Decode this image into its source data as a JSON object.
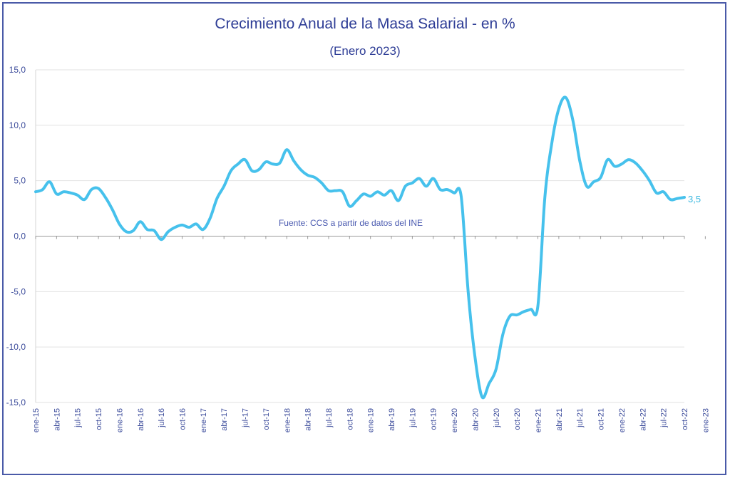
{
  "chart_data": {
    "type": "line",
    "title": "Crecimiento Anual de la Masa Salarial - en %",
    "subtitle": "(Enero 2023)",
    "source_note": "Fuente: CCS a partir de datos del INE",
    "end_label": "3,5",
    "xlabel": "",
    "ylabel": "",
    "ylim": [
      -15,
      15
    ],
    "yticks": [
      15,
      10,
      5,
      0,
      -5,
      -10,
      -15
    ],
    "ytick_labels": [
      "15,0",
      "10,0",
      "5,0",
      "0,0",
      "-5,0",
      "-10,0",
      "-15,0"
    ],
    "grid": true,
    "line_color": "#46c1ec",
    "x_tick_labels": [
      "ene-15",
      "abr-15",
      "jul-15",
      "oct-15",
      "ene-16",
      "abr-16",
      "jul-16",
      "oct-16",
      "ene-17",
      "abr-17",
      "jul-17",
      "oct-17",
      "ene-18",
      "abr-18",
      "jul-18",
      "oct-18",
      "ene-19",
      "abr-19",
      "jul-19",
      "oct-19",
      "ene-20",
      "abr-20",
      "jul-20",
      "oct-20",
      "ene-21",
      "abr-21",
      "jul-21",
      "oct-21",
      "ene-22",
      "abr-22",
      "jul-22",
      "oct-22",
      "ene-23"
    ],
    "series": [
      {
        "values": [
          4.0,
          4.2,
          4.9,
          3.8,
          4.0,
          3.9,
          3.7,
          3.3,
          4.2,
          4.3,
          3.5,
          2.4,
          1.1,
          0.4,
          0.5,
          1.3,
          0.6,
          0.5,
          -0.3,
          0.4,
          0.8,
          1.0,
          0.8,
          1.1,
          0.6,
          1.6,
          3.4,
          4.5,
          5.9,
          6.5,
          6.9,
          5.9,
          6.0,
          6.7,
          6.5,
          6.6,
          7.8,
          6.8,
          6.0,
          5.5,
          5.3,
          4.8,
          4.1,
          4.1,
          4.0,
          2.7,
          3.2,
          3.8,
          3.6,
          4.0,
          3.7,
          4.1,
          3.2,
          4.5,
          4.8,
          5.2,
          4.5,
          5.2,
          4.2,
          4.2,
          3.9,
          3.6,
          -5.0,
          -11.0,
          -14.5,
          -13.3,
          -12.0,
          -8.8,
          -7.2,
          -7.1,
          -6.8,
          -6.6,
          -6.3,
          3.5,
          8.4,
          11.5,
          12.5,
          10.5,
          6.8,
          4.5,
          4.9,
          5.3,
          6.9,
          6.3,
          6.5,
          6.9,
          6.6,
          5.9,
          5.0,
          3.9,
          4.0,
          3.3,
          3.4,
          3.5
        ]
      }
    ]
  }
}
